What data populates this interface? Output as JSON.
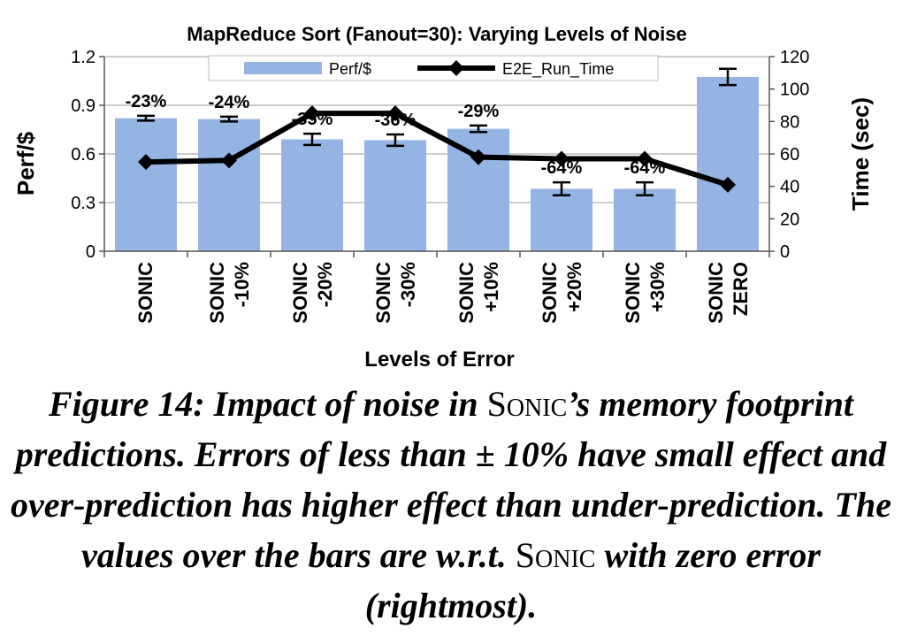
{
  "chart_data": {
    "type": "bar",
    "title": "MapReduce Sort (Fanout=30): Varying Levels of Noise",
    "xlabel": "Levels of Error",
    "ylabel": "Perf/$",
    "y2label": "Time (sec)",
    "ylim": [
      0,
      1.2
    ],
    "y2lim": [
      0,
      120
    ],
    "yticks": [
      "0",
      "0.3",
      "0.6",
      "0.9",
      "1.2"
    ],
    "y2ticks": [
      "0",
      "20",
      "40",
      "60",
      "80",
      "100",
      "120"
    ],
    "categories": [
      [
        "SONIC"
      ],
      [
        "SONIC",
        "-10%"
      ],
      [
        "SONIC",
        "-20%"
      ],
      [
        "SONIC",
        "-30%"
      ],
      [
        "SONIC",
        "+10%"
      ],
      [
        "SONIC",
        "+20%"
      ],
      [
        "SONIC",
        "+30%"
      ],
      [
        "SONIC",
        "ZERO"
      ]
    ],
    "legend_position": "top",
    "series": [
      {
        "name": "Perf/$",
        "kind": "bar",
        "axis": "left",
        "color": "#94b4e3",
        "values": [
          0.82,
          0.815,
          0.69,
          0.685,
          0.755,
          0.385,
          0.385,
          1.075
        ],
        "error": [
          0.015,
          0.015,
          0.035,
          0.035,
          0.02,
          0.04,
          0.04,
          0.05
        ],
        "labels": [
          "-23%",
          "-24%",
          "-35%",
          "-36%",
          "-29%",
          "-64%",
          "-64%",
          ""
        ]
      },
      {
        "name": "E2E_Run_Time",
        "kind": "line",
        "axis": "right",
        "color": "#000000",
        "values": [
          55,
          56,
          85,
          85,
          58,
          57,
          57,
          41
        ]
      }
    ]
  },
  "caption": {
    "part1": "Figure 14: Impact of noise in ",
    "sonic1": "Sonic",
    "part2": "’s memory footprint predictions. Errors of less than ± 10% have small effect and over-prediction has higher effect than under-prediction. The values over the bars are w.r.t. ",
    "sonic2": "Sonic",
    "part3": " with zero error (rightmost)."
  }
}
